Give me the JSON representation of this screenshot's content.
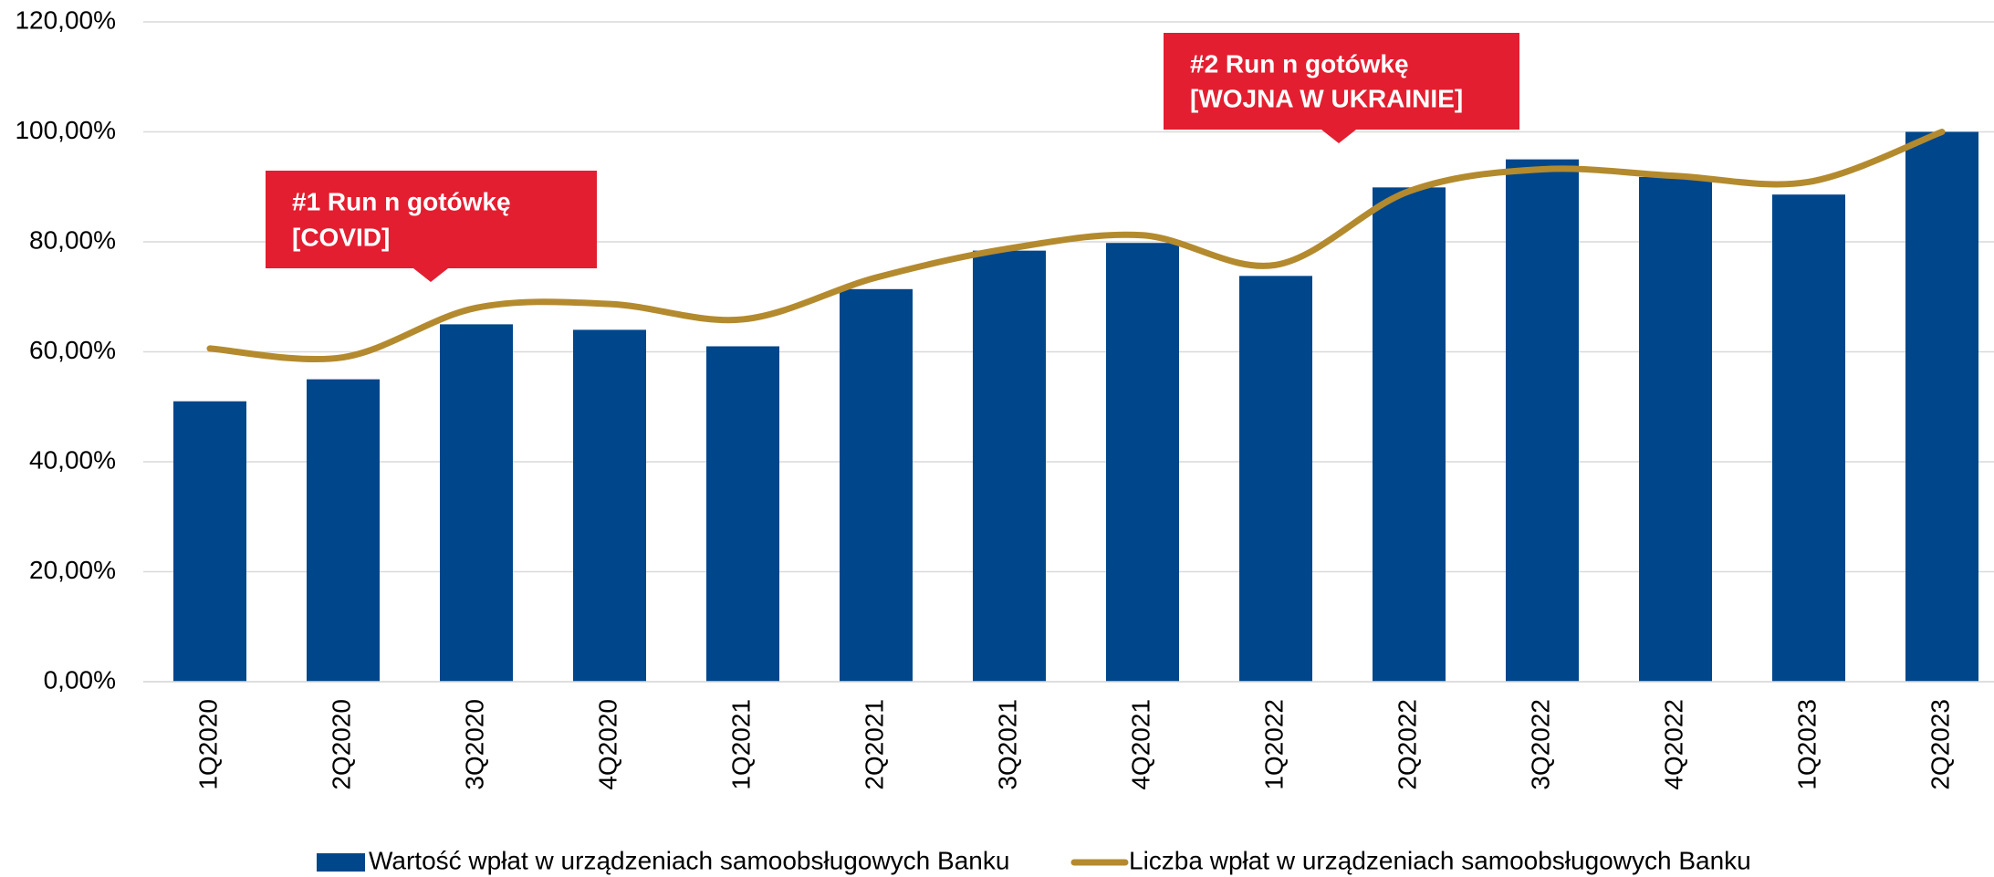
{
  "chart_data": {
    "type": "bar_line",
    "categories": [
      "1Q2020",
      "2Q2020",
      "3Q2020",
      "4Q2020",
      "1Q2021",
      "2Q2021",
      "3Q2021",
      "4Q2021",
      "1Q2022",
      "2Q2022",
      "3Q2022",
      "4Q2022",
      "1Q2023",
      "2Q2023"
    ],
    "series": [
      {
        "name": "Wartość wpłat w urządzeniach samoobsługowych Banku",
        "type": "bar",
        "color": "#00468b",
        "values": [
          51,
          55,
          65,
          64,
          61,
          71.4,
          78.4,
          79.8,
          73.8,
          89.9,
          95,
          91.8,
          88.6,
          100
        ]
      },
      {
        "name": "Liczba wpłat w urządzeniach samoobsługowych Banku",
        "type": "line",
        "color": "#b48a2e",
        "values": [
          60.6,
          59,
          68,
          68.7,
          65.9,
          73.5,
          78.8,
          81.2,
          75.8,
          89.2,
          93.2,
          92,
          90.9,
          100
        ]
      }
    ],
    "ylim": [
      0,
      120
    ],
    "yticks": [
      {
        "value": 0,
        "label": "0,00%"
      },
      {
        "value": 20,
        "label": "20,00%"
      },
      {
        "value": 40,
        "label": "40,00%"
      },
      {
        "value": 60,
        "label": "60,00%"
      },
      {
        "value": 80,
        "label": "80,00%"
      },
      {
        "value": 100,
        "label": "100,00%"
      },
      {
        "value": 120,
        "label": "120,00%"
      }
    ],
    "grid": true,
    "legend": "bottom",
    "annotations": [
      {
        "lines": [
          "#1 Run n gotówkę",
          "[COVID]"
        ],
        "color": "#e31e30"
      },
      {
        "lines": [
          "#2 Run n gotówkę",
          "[WOJNA W UKRAINIE]"
        ],
        "color": "#e31e30"
      }
    ]
  }
}
